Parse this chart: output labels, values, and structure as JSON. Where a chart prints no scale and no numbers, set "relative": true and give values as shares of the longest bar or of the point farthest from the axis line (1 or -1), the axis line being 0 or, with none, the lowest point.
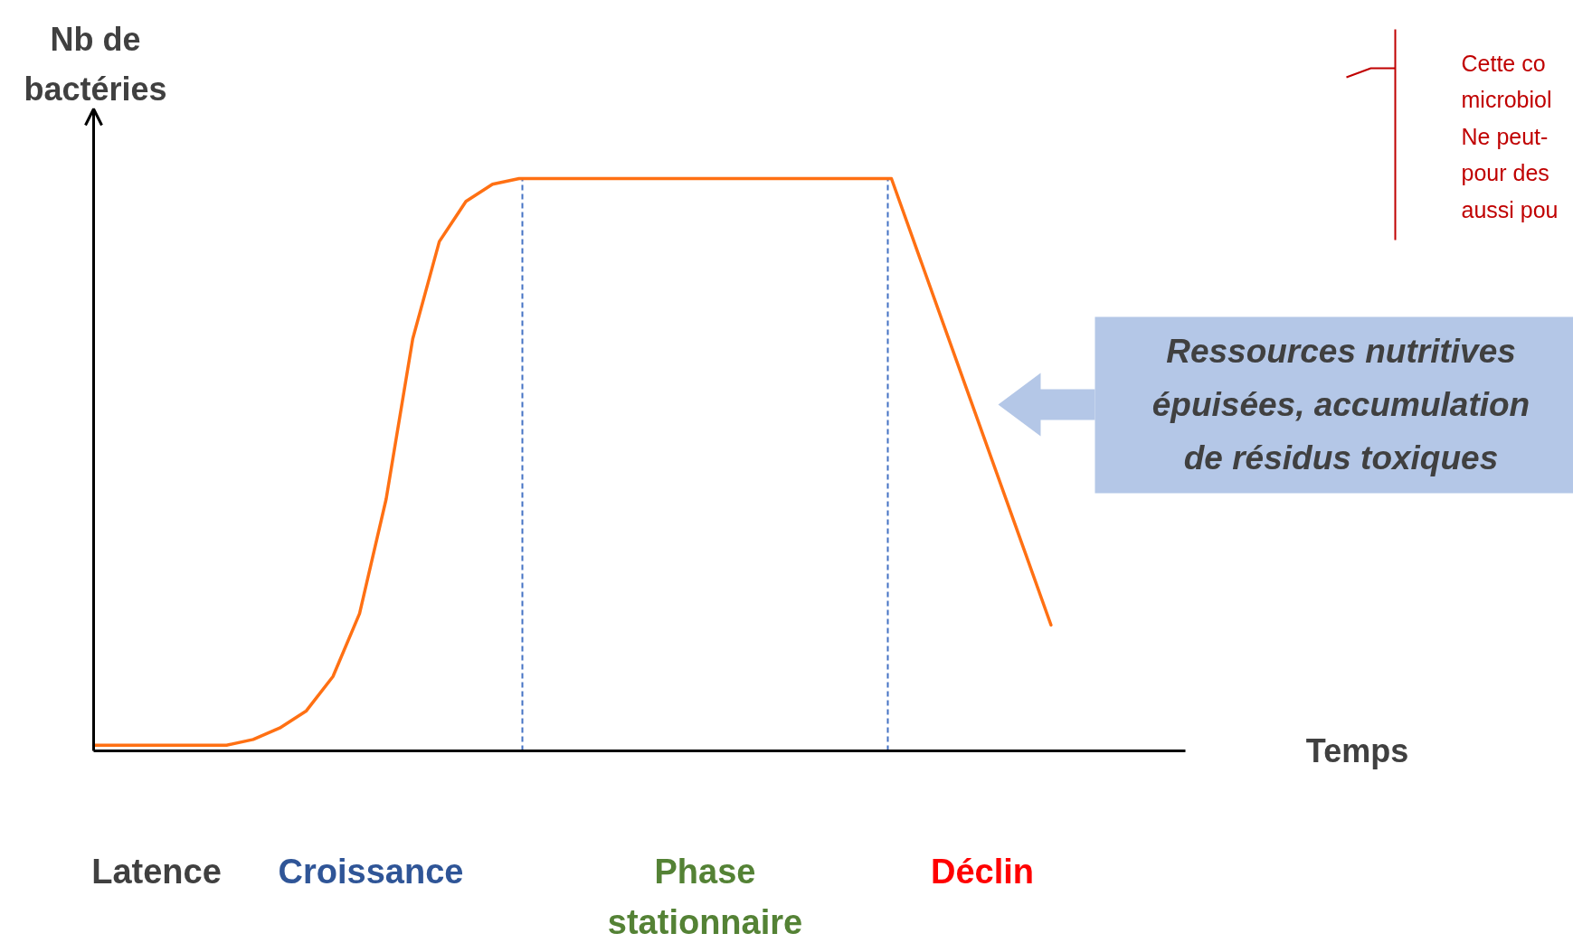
{
  "chart_data": {
    "type": "line",
    "relative": true,
    "ylabel": "Nb de\nbactéries",
    "categories": [
      null,
      null,
      null,
      null,
      null,
      null,
      null,
      null,
      null,
      null,
      null,
      null,
      null,
      null,
      null,
      null,
      null,
      null,
      null,
      null,
      null,
      null,
      null,
      null,
      null,
      null,
      null,
      null,
      null,
      null,
      null,
      null,
      null,
      null,
      null,
      null,
      null
    ],
    "color": "#ff7013",
    "values": [
      0.01,
      0.01,
      0.01,
      0.01,
      0.01,
      0.01,
      0.02,
      0.04,
      0.07,
      0.13,
      0.24,
      0.44,
      0.72,
      0.89,
      0.96,
      0.99,
      1.0,
      1.0,
      1.0,
      1.0,
      1.0,
      1.0,
      1.0,
      1.0,
      1.0,
      1.0,
      1.0,
      1.0,
      1.0,
      1.0,
      1.0,
      0.87,
      0.74,
      0.61,
      0.48,
      0.35,
      0.22
    ],
    "annotations": [
      "Ressources nutritives\népuisées, accumulation\nde résidus toxiques",
      "Cette co\nmicrobiol\nNe peut-\npour des\naussi pou",
      "Latence",
      "Croissance",
      "Phase\nstationnaire",
      "Déclin",
      "Temps"
    ]
  }
}
